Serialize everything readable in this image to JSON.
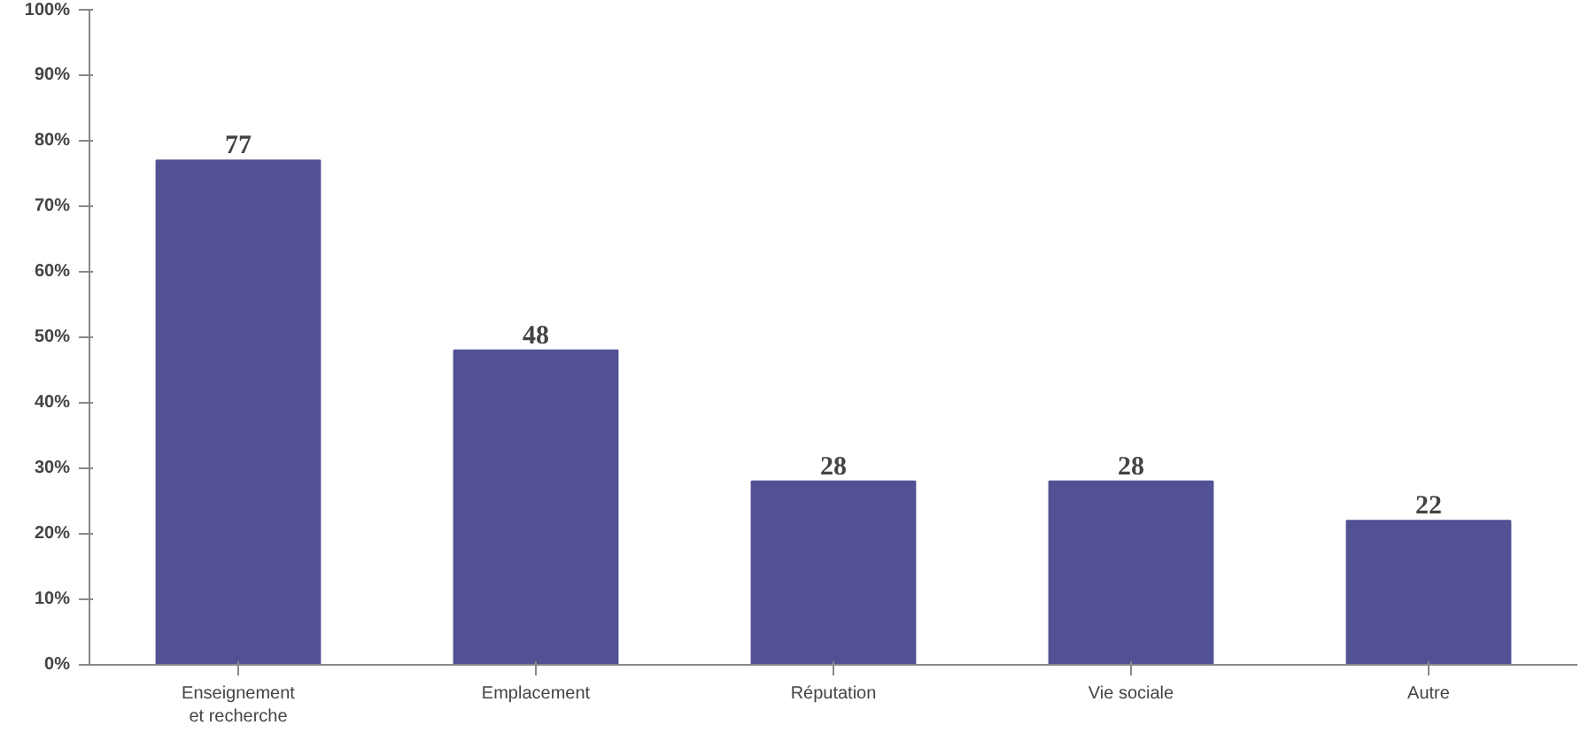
{
  "chart_data": {
    "type": "bar",
    "categories": [
      "Enseignement\net recherche",
      "Emplacement",
      "Réputation",
      "Vie sociale",
      "Autre"
    ],
    "values": [
      77,
      48,
      28,
      28,
      22
    ],
    "color": "#525194",
    "ylim": [
      0,
      100
    ],
    "yticks": [
      {
        "value": 0,
        "label": "0%"
      },
      {
        "value": 10,
        "label": "10%"
      },
      {
        "value": 20,
        "label": "20%"
      },
      {
        "value": 30,
        "label": "30%"
      },
      {
        "value": 40,
        "label": "40%"
      },
      {
        "value": 50,
        "label": "50%"
      },
      {
        "value": 60,
        "label": "60%"
      },
      {
        "value": 70,
        "label": "70%"
      },
      {
        "value": 80,
        "label": "80%"
      },
      {
        "value": 90,
        "label": "90%"
      },
      {
        "value": 100,
        "label": "100%"
      }
    ],
    "data_labels": true,
    "grid": false
  }
}
